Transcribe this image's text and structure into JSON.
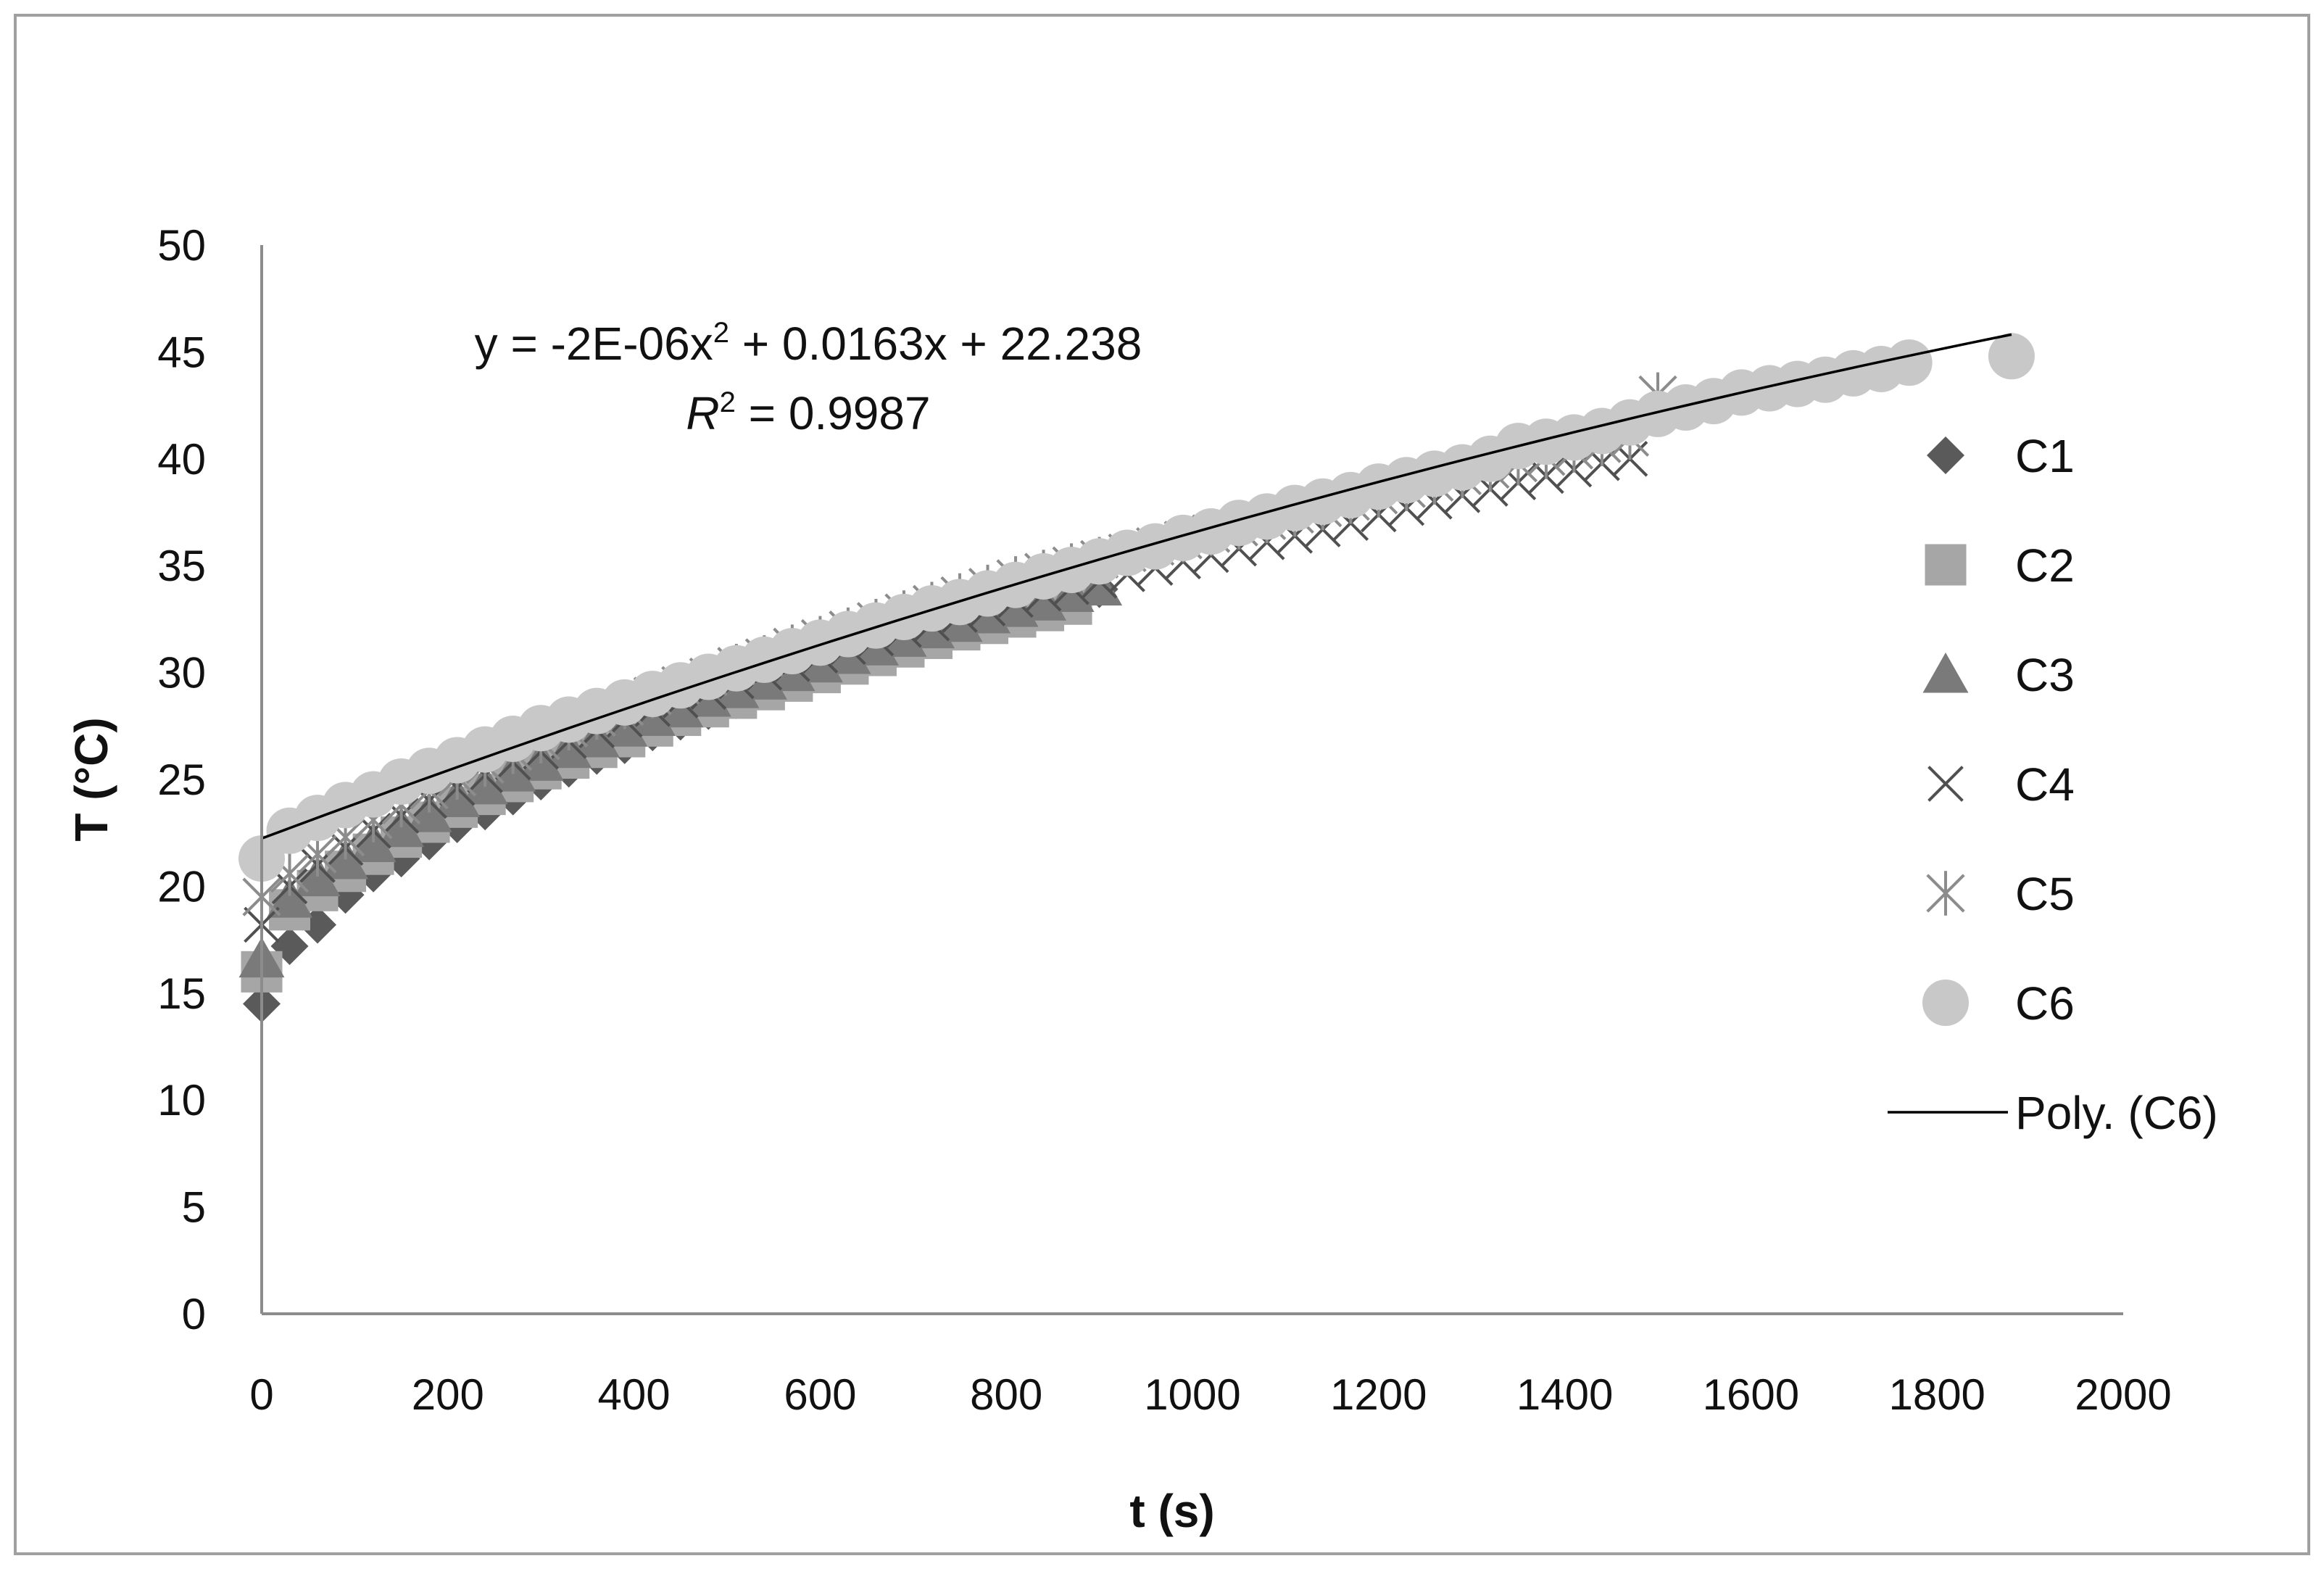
{
  "chart_data": {
    "type": "scatter",
    "xlabel": "t (s)",
    "ylabel": "T (°C)",
    "xlim": [
      0,
      2000
    ],
    "ylim": [
      0,
      50
    ],
    "x_ticks": [
      0,
      200,
      400,
      600,
      800,
      1000,
      1200,
      1400,
      1600,
      1800,
      2000
    ],
    "y_ticks": [
      0,
      5,
      10,
      15,
      20,
      25,
      30,
      35,
      40,
      45,
      50
    ],
    "grid": false,
    "legend_position": "right",
    "series": [
      {
        "name": "C1",
        "marker": "diamond",
        "color": "#5a5a5a",
        "points": [
          [
            0,
            14.5
          ],
          [
            30,
            17.2
          ],
          [
            60,
            18.2
          ],
          [
            90,
            19.6
          ],
          [
            120,
            20.6
          ],
          [
            150,
            21.3
          ],
          [
            180,
            22.1
          ],
          [
            210,
            22.9
          ],
          [
            240,
            23.5
          ],
          [
            270,
            24.2
          ],
          [
            300,
            24.9
          ],
          [
            330,
            25.5
          ],
          [
            360,
            26.1
          ],
          [
            390,
            26.6
          ],
          [
            420,
            27.2
          ],
          [
            450,
            27.7
          ],
          [
            480,
            28.2
          ],
          [
            510,
            28.7
          ],
          [
            540,
            29.2
          ],
          [
            570,
            29.7
          ],
          [
            600,
            30.2
          ],
          [
            630,
            30.6
          ],
          [
            660,
            31.0
          ],
          [
            690,
            31.5
          ],
          [
            720,
            31.9
          ],
          [
            750,
            32.3
          ],
          [
            780,
            32.6
          ],
          [
            810,
            33.0
          ],
          [
            840,
            33.3
          ],
          [
            870,
            33.6
          ],
          [
            900,
            33.9
          ]
        ]
      },
      {
        "name": "C2",
        "marker": "square",
        "color": "#a6a6a6",
        "points": [
          [
            0,
            16.0
          ],
          [
            30,
            18.9
          ],
          [
            60,
            19.8
          ],
          [
            90,
            20.7
          ],
          [
            120,
            21.5
          ],
          [
            150,
            22.3
          ],
          [
            180,
            23.0
          ],
          [
            210,
            23.7
          ],
          [
            240,
            24.3
          ],
          [
            270,
            24.9
          ],
          [
            300,
            25.5
          ],
          [
            330,
            26.0
          ],
          [
            360,
            26.5
          ],
          [
            390,
            27.0
          ],
          [
            420,
            27.5
          ],
          [
            450,
            28.0
          ],
          [
            480,
            28.4
          ],
          [
            510,
            28.8
          ],
          [
            540,
            29.2
          ],
          [
            570,
            29.6
          ],
          [
            600,
            30.0
          ],
          [
            630,
            30.4
          ],
          [
            660,
            30.8
          ],
          [
            690,
            31.2
          ],
          [
            720,
            31.6
          ],
          [
            750,
            32.0
          ],
          [
            780,
            32.3
          ],
          [
            810,
            32.6
          ],
          [
            840,
            32.9
          ],
          [
            870,
            33.2
          ]
        ]
      },
      {
        "name": "C3",
        "marker": "triangle",
        "color": "#7a7a7a",
        "points": [
          [
            0,
            16.6
          ],
          [
            30,
            19.4
          ],
          [
            60,
            20.4
          ],
          [
            90,
            21.2
          ],
          [
            120,
            22.0
          ],
          [
            150,
            22.7
          ],
          [
            180,
            23.4
          ],
          [
            210,
            24.1
          ],
          [
            240,
            24.7
          ],
          [
            270,
            25.3
          ],
          [
            300,
            25.8
          ],
          [
            330,
            26.4
          ],
          [
            360,
            26.9
          ],
          [
            390,
            27.4
          ],
          [
            420,
            27.9
          ],
          [
            450,
            28.3
          ],
          [
            480,
            28.8
          ],
          [
            510,
            29.2
          ],
          [
            540,
            29.6
          ],
          [
            570,
            30.0
          ],
          [
            600,
            30.4
          ],
          [
            630,
            30.8
          ],
          [
            660,
            31.2
          ],
          [
            690,
            31.6
          ],
          [
            720,
            32.0
          ],
          [
            750,
            32.3
          ],
          [
            780,
            32.7
          ],
          [
            810,
            33.0
          ],
          [
            840,
            33.3
          ],
          [
            870,
            33.7
          ],
          [
            900,
            34.0
          ]
        ]
      },
      {
        "name": "C4",
        "marker": "x",
        "color": "#505050",
        "points": [
          [
            0,
            18.2
          ],
          [
            30,
            20.0
          ],
          [
            60,
            21.0
          ],
          [
            90,
            21.8
          ],
          [
            120,
            22.6
          ],
          [
            150,
            23.3
          ],
          [
            180,
            24.0
          ],
          [
            210,
            24.6
          ],
          [
            240,
            25.2
          ],
          [
            270,
            25.8
          ],
          [
            300,
            26.3
          ],
          [
            330,
            26.8
          ],
          [
            360,
            27.3
          ],
          [
            390,
            27.8
          ],
          [
            420,
            28.3
          ],
          [
            450,
            28.7
          ],
          [
            480,
            29.1
          ],
          [
            510,
            29.6
          ],
          [
            540,
            30.0
          ],
          [
            570,
            30.4
          ],
          [
            600,
            30.8
          ],
          [
            630,
            31.2
          ],
          [
            660,
            31.6
          ],
          [
            690,
            32.0
          ],
          [
            720,
            32.3
          ],
          [
            750,
            32.7
          ],
          [
            780,
            33.0
          ],
          [
            810,
            33.4
          ],
          [
            840,
            33.7
          ],
          [
            870,
            34.0
          ],
          [
            900,
            34.3
          ],
          [
            930,
            34.6
          ],
          [
            960,
            34.9
          ],
          [
            990,
            35.2
          ],
          [
            1020,
            35.5
          ],
          [
            1050,
            35.8
          ],
          [
            1080,
            36.1
          ],
          [
            1110,
            36.4
          ],
          [
            1140,
            36.7
          ],
          [
            1170,
            37.0
          ],
          [
            1200,
            37.4
          ],
          [
            1230,
            37.7
          ],
          [
            1260,
            38.0
          ],
          [
            1290,
            38.3
          ],
          [
            1320,
            38.6
          ],
          [
            1350,
            38.9
          ],
          [
            1380,
            39.2
          ],
          [
            1410,
            39.5
          ],
          [
            1440,
            39.8
          ],
          [
            1470,
            40.0
          ]
        ]
      },
      {
        "name": "C5",
        "marker": "star",
        "color": "#8c8c8c",
        "points": [
          [
            0,
            19.5
          ],
          [
            30,
            20.6
          ],
          [
            60,
            21.5
          ],
          [
            90,
            22.3
          ],
          [
            120,
            23.1
          ],
          [
            150,
            23.8
          ],
          [
            180,
            24.5
          ],
          [
            210,
            25.1
          ],
          [
            240,
            25.7
          ],
          [
            270,
            26.3
          ],
          [
            300,
            26.8
          ],
          [
            330,
            27.4
          ],
          [
            360,
            27.9
          ],
          [
            390,
            28.4
          ],
          [
            420,
            28.9
          ],
          [
            450,
            29.4
          ],
          [
            480,
            29.8
          ],
          [
            510,
            30.3
          ],
          [
            540,
            30.7
          ],
          [
            570,
            31.2
          ],
          [
            600,
            31.6
          ],
          [
            630,
            32.0
          ],
          [
            660,
            32.4
          ],
          [
            690,
            32.8
          ],
          [
            720,
            33.2
          ],
          [
            750,
            33.6
          ],
          [
            780,
            34.0
          ],
          [
            810,
            34.4
          ],
          [
            840,
            34.7
          ],
          [
            870,
            35.0
          ],
          [
            900,
            35.3
          ],
          [
            930,
            35.6
          ],
          [
            960,
            35.9
          ],
          [
            990,
            36.2
          ],
          [
            1020,
            36.5
          ],
          [
            1050,
            36.8
          ],
          [
            1080,
            37.1
          ],
          [
            1110,
            37.4
          ],
          [
            1140,
            37.7
          ],
          [
            1170,
            38.0
          ],
          [
            1200,
            38.3
          ],
          [
            1230,
            38.6
          ],
          [
            1260,
            38.9
          ],
          [
            1290,
            39.2
          ],
          [
            1320,
            39.5
          ],
          [
            1350,
            39.8
          ],
          [
            1380,
            40.1
          ],
          [
            1410,
            40.4
          ],
          [
            1440,
            40.7
          ],
          [
            1470,
            41.0
          ],
          [
            1500,
            43.0
          ]
        ]
      },
      {
        "name": "C6",
        "marker": "circle",
        "color": "#c8c8c8",
        "points": [
          [
            0,
            21.3
          ],
          [
            30,
            22.6
          ],
          [
            60,
            23.2
          ],
          [
            90,
            23.8
          ],
          [
            120,
            24.3
          ],
          [
            150,
            24.9
          ],
          [
            180,
            25.4
          ],
          [
            210,
            25.9
          ],
          [
            240,
            26.4
          ],
          [
            270,
            26.9
          ],
          [
            300,
            27.4
          ],
          [
            330,
            27.8
          ],
          [
            360,
            28.2
          ],
          [
            390,
            28.6
          ],
          [
            420,
            29.0
          ],
          [
            450,
            29.4
          ],
          [
            480,
            29.8
          ],
          [
            510,
            30.2
          ],
          [
            540,
            30.6
          ],
          [
            570,
            31.0
          ],
          [
            600,
            31.4
          ],
          [
            630,
            31.8
          ],
          [
            660,
            32.2
          ],
          [
            690,
            32.6
          ],
          [
            720,
            33.0
          ],
          [
            750,
            33.3
          ],
          [
            780,
            33.7
          ],
          [
            810,
            34.1
          ],
          [
            840,
            34.5
          ],
          [
            870,
            34.8
          ],
          [
            900,
            35.2
          ],
          [
            930,
            35.6
          ],
          [
            960,
            35.9
          ],
          [
            990,
            36.3
          ],
          [
            1020,
            36.6
          ],
          [
            1050,
            37.0
          ],
          [
            1080,
            37.3
          ],
          [
            1110,
            37.7
          ],
          [
            1140,
            38.0
          ],
          [
            1170,
            38.3
          ],
          [
            1200,
            38.7
          ],
          [
            1230,
            39.0
          ],
          [
            1260,
            39.3
          ],
          [
            1290,
            39.6
          ],
          [
            1320,
            40.0
          ],
          [
            1350,
            40.6
          ],
          [
            1380,
            40.8
          ],
          [
            1410,
            41.0
          ],
          [
            1440,
            41.3
          ],
          [
            1470,
            41.7
          ],
          [
            1500,
            42.1
          ],
          [
            1530,
            42.4
          ],
          [
            1560,
            42.7
          ],
          [
            1590,
            43.1
          ],
          [
            1620,
            43.3
          ],
          [
            1650,
            43.5
          ],
          [
            1680,
            43.7
          ],
          [
            1710,
            44.0
          ],
          [
            1740,
            44.2
          ],
          [
            1770,
            44.5
          ],
          [
            1880,
            44.8
          ]
        ]
      }
    ],
    "trendline": {
      "name": "Poly. (C6)",
      "type": "polynomial",
      "order": 2,
      "coefficients": [
        -2e-06,
        0.0163,
        22.238
      ],
      "x_range": [
        0,
        1880
      ],
      "color": "#000000"
    },
    "annotations": {
      "equation": {
        "prefix": "y = -2E-06x",
        "sup": "2",
        "suffix": " + 0.0163x + 22.238"
      },
      "r_squared": {
        "symbol": "R",
        "sup": "2",
        "suffix": " = 0.9987"
      }
    }
  }
}
